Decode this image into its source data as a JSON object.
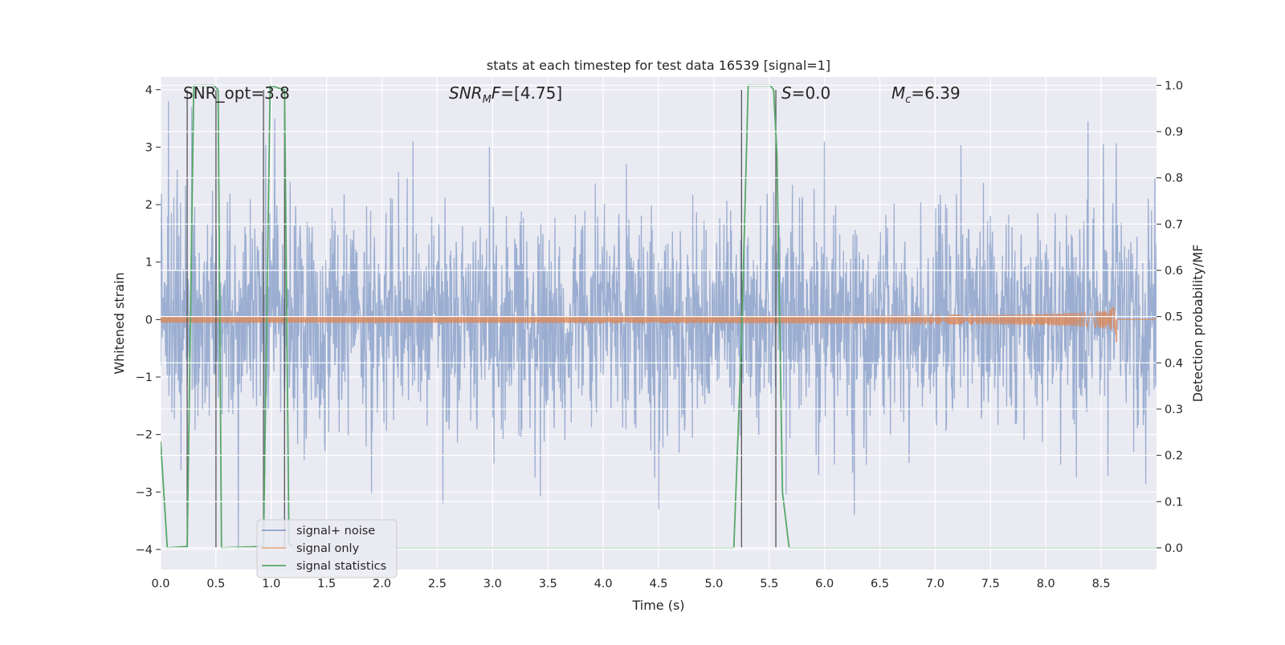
{
  "chart_data": {
    "type": "line",
    "title": "stats at each timestep for test data 16539 [signal=1]",
    "xlabel": "Time (s)",
    "ylabel_left": "Whitened strain",
    "ylabel_right": "Detection probability/MF",
    "xlim": [
      0.0,
      9.0
    ],
    "ylim_left": [
      -4.35,
      4.22
    ],
    "ylim_right": [
      -0.047,
      1.018
    ],
    "x_ticks": [
      "0.0",
      "0.5",
      "1.0",
      "1.5",
      "2.0",
      "2.5",
      "3.0",
      "3.5",
      "4.0",
      "4.5",
      "5.0",
      "5.5",
      "6.0",
      "6.5",
      "7.0",
      "7.5",
      "8.0",
      "8.5"
    ],
    "y_left_ticks": [
      "4",
      "3",
      "2",
      "1",
      "0",
      "−1",
      "−2",
      "−3",
      "−4"
    ],
    "y_right_ticks": [
      "1.0",
      "0.9",
      "0.8",
      "0.7",
      "0.6",
      "0.5",
      "0.4",
      "0.3",
      "0.2",
      "0.1",
      "0.0"
    ],
    "grid": true,
    "legend_position": "lower-left",
    "annotations": [
      {
        "id": "snr-opt",
        "text": "SNR_opt=3.8"
      },
      {
        "id": "snr-mf",
        "text": "=[4.75]",
        "math_base": "SNR",
        "math_sub": "M",
        "math_tail": "F"
      },
      {
        "id": "s-value",
        "text": "=0.0",
        "math_base": "S"
      },
      {
        "id": "mc-value",
        "text": "=6.39",
        "math_base": "M",
        "math_sub": "c"
      }
    ],
    "series": [
      {
        "name": "signal+ noise",
        "color": "#4c72b0",
        "opacity": 0.5,
        "kind": "noise",
        "sigma": 0.95,
        "duration": 9.0,
        "peaks": [
          {
            "x": 0.07,
            "y": 3.8
          },
          {
            "x": 0.28,
            "y": 3.7
          },
          {
            "x": 0.7,
            "y": -4.0
          },
          {
            "x": 1.03,
            "y": 3.5
          },
          {
            "x": 2.28,
            "y": 3.1
          },
          {
            "x": 2.55,
            "y": 3.2
          },
          {
            "x": 2.55,
            "y": -3.2
          },
          {
            "x": 4.5,
            "y": -3.3
          },
          {
            "x": 6.0,
            "y": 3.1
          },
          {
            "x": 6.27,
            "y": -3.4
          },
          {
            "x": 8.38,
            "y": 3.45
          },
          {
            "x": 8.52,
            "y": 3.05
          }
        ]
      },
      {
        "name": "signal only",
        "color": "#dd8452",
        "kind": "chirp",
        "merger_time": 8.64,
        "peak_amplitude": 0.38
      },
      {
        "name": "signal statistics",
        "color": "#55a868",
        "axis": "right",
        "x": [
          0.0,
          0.06,
          0.24,
          0.3,
          0.48,
          0.52,
          0.55,
          0.93,
          0.99,
          1.12,
          1.16,
          1.2,
          5.18,
          5.25,
          5.31,
          5.51,
          5.54,
          5.57,
          5.62,
          5.68,
          9.0
        ],
        "y": [
          0.23,
          0.0,
          0.003,
          1.0,
          1.0,
          0.99,
          0.0,
          0.003,
          1.0,
          0.99,
          0.01,
          0.0,
          0.0,
          0.45,
          1.0,
          1.0,
          0.99,
          0.85,
          0.12,
          0.0,
          0.0
        ]
      }
    ],
    "vertical_lines_x": [
      0.24,
      0.5,
      0.93,
      1.12,
      5.25,
      5.56
    ],
    "vertical_lines_right_range": [
      0.0,
      0.99
    ]
  }
}
